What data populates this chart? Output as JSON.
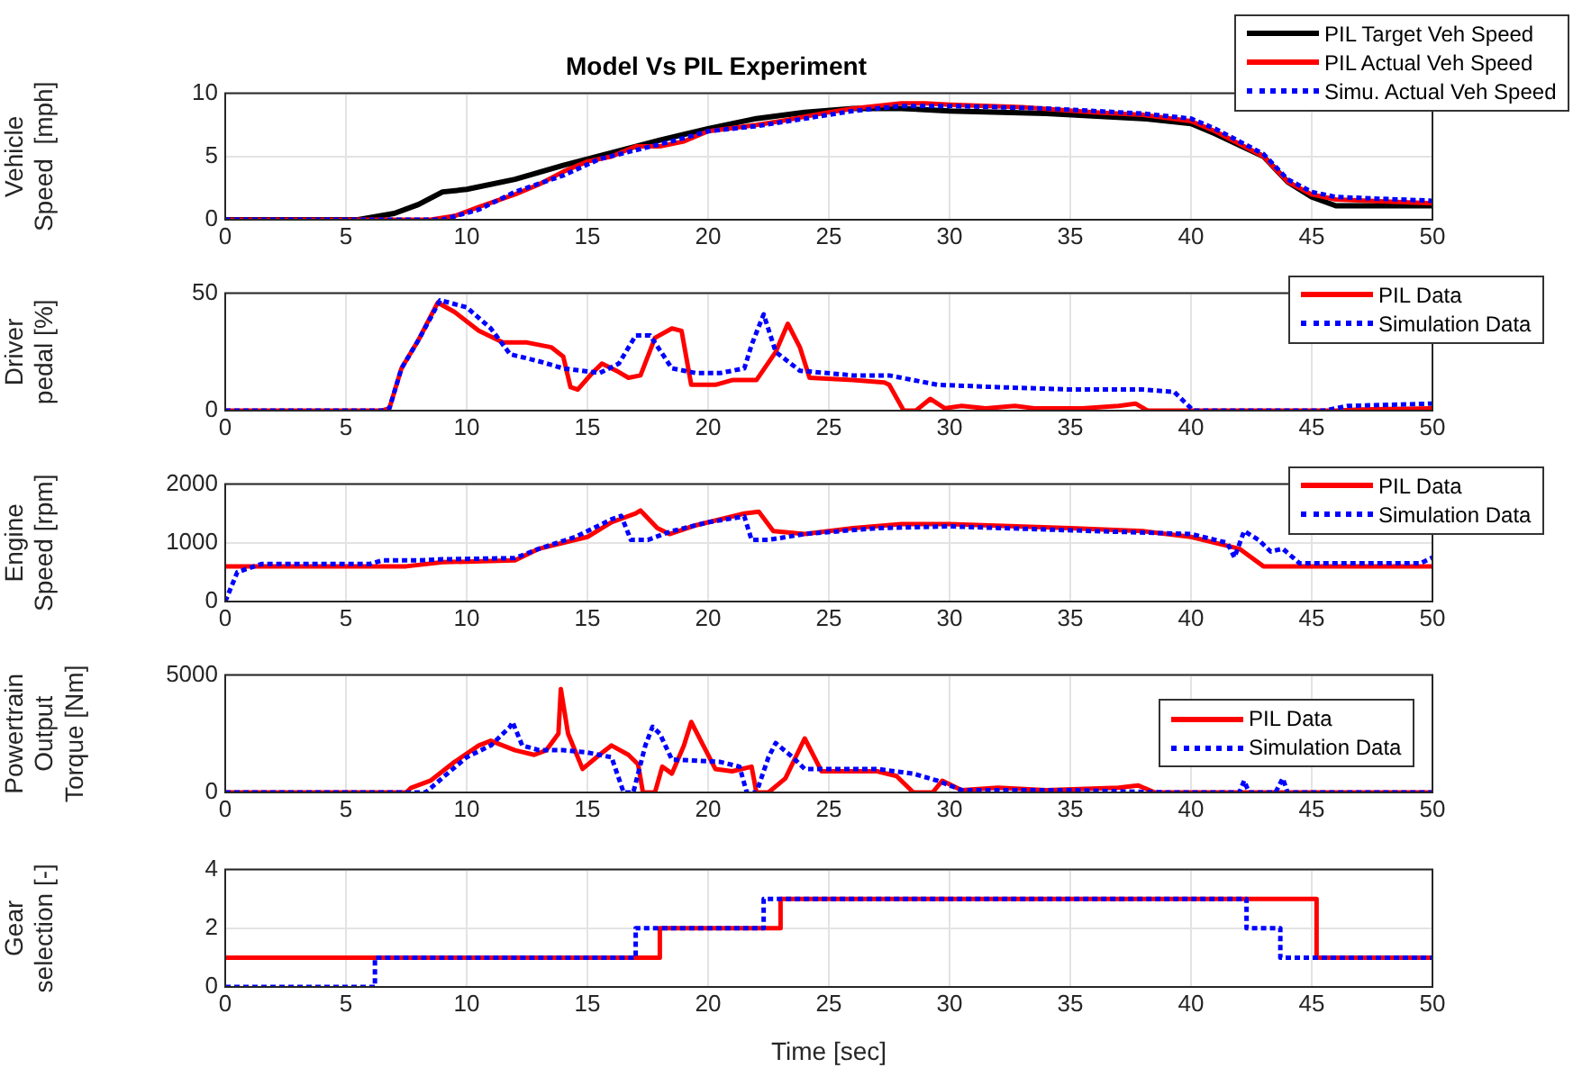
{
  "chart_data": [
    {
      "type": "line",
      "title": "Model Vs PIL Experiment",
      "ylabel": "Vehicle\nSpeed  [mph]",
      "xlim": [
        0,
        50
      ],
      "xticks": [
        0,
        5,
        10,
        15,
        20,
        25,
        30,
        35,
        40,
        45,
        50
      ],
      "ylim": [
        0,
        10
      ],
      "yticks": [
        0,
        5,
        10
      ],
      "grid": true,
      "legend": "top",
      "series": [
        {
          "name": "PIL Target Veh Speed",
          "color": "#000000",
          "line_style": "solid",
          "x": [
            0,
            5.5,
            7,
            8,
            9,
            10,
            12,
            14,
            16,
            18,
            20,
            22,
            24,
            26,
            28,
            30,
            34,
            38,
            40,
            41,
            43,
            44,
            45,
            46,
            50
          ],
          "values": [
            0,
            0,
            0.5,
            1.2,
            2.2,
            2.4,
            3.2,
            4.3,
            5.3,
            6.3,
            7.2,
            8,
            8.5,
            8.8,
            8.8,
            8.6,
            8.4,
            8,
            7.6,
            6.8,
            5,
            3,
            1.8,
            1.1,
            1.1
          ]
        },
        {
          "name": "PIL Actual Veh Speed",
          "color": "#ff0000",
          "line_style": "solid",
          "x": [
            0,
            8.5,
            9.5,
            10.5,
            12,
            13,
            14,
            15,
            16,
            17,
            18,
            19,
            20,
            22,
            23,
            25,
            26,
            28,
            29,
            30,
            33,
            36,
            38,
            40,
            41,
            43,
            44,
            45,
            46,
            50
          ],
          "values": [
            0,
            0,
            0.3,
            1,
            2,
            2.8,
            3.8,
            4.6,
            5,
            5.8,
            5.8,
            6.2,
            7,
            7.5,
            7.8,
            8.5,
            8.8,
            9.2,
            9.2,
            9.1,
            8.9,
            8.5,
            8.3,
            7.8,
            7,
            5,
            3,
            2,
            1.6,
            1.3
          ]
        },
        {
          "name": "Simu. Actual Veh Speed",
          "color": "#0000ff",
          "line_style": "dotted",
          "x": [
            0,
            9,
            10.5,
            12,
            14,
            15.5,
            17,
            18.5,
            20,
            22,
            24,
            26,
            28,
            30,
            34,
            38,
            40,
            41,
            43,
            44,
            45,
            46,
            50
          ],
          "values": [
            0,
            0,
            0.8,
            2.2,
            3.5,
            4.8,
            5.5,
            6.2,
            7,
            7.4,
            8,
            8.6,
            9,
            9,
            8.8,
            8.4,
            8,
            7.2,
            5.2,
            3.2,
            2.2,
            1.8,
            1.5
          ]
        }
      ]
    },
    {
      "type": "line",
      "ylabel": "Driver\npedal [%]",
      "xlim": [
        0,
        50
      ],
      "xticks": [
        0,
        5,
        10,
        15,
        20,
        25,
        30,
        35,
        40,
        45,
        50
      ],
      "ylim": [
        0,
        50
      ],
      "yticks": [
        0,
        50
      ],
      "grid": true,
      "legend": "top right",
      "series": [
        {
          "name": "PIL Data",
          "color": "#ff0000",
          "line_style": "solid",
          "x": [
            0,
            6.5,
            6.8,
            7.3,
            8,
            8.8,
            9.5,
            10.5,
            11.5,
            12.5,
            13.5,
            14,
            14.3,
            14.6,
            15.2,
            15.6,
            16.2,
            16.7,
            17.2,
            17.8,
            18.5,
            18.9,
            19.3,
            20.3,
            21,
            22,
            22.8,
            23.3,
            23.8,
            24.2,
            26,
            27.3,
            27.5,
            28.1,
            28.6,
            29.2,
            29.8,
            30.5,
            31.5,
            32.7,
            33.5,
            35.5,
            37,
            37.7,
            38.2,
            46,
            47,
            50
          ],
          "values": [
            0,
            0,
            1,
            18,
            30,
            46,
            42,
            34,
            29,
            29,
            27,
            23,
            10,
            9,
            16,
            20,
            17,
            14,
            15,
            31,
            35,
            34,
            11,
            11,
            13,
            13,
            25,
            37,
            27,
            14,
            13,
            12,
            11,
            0,
            0,
            5,
            1,
            2,
            1,
            2,
            1,
            1,
            2,
            3,
            0,
            0,
            0.5,
            1
          ]
        },
        {
          "name": "Simulation Data",
          "color": "#0000ff",
          "line_style": "dotted",
          "x": [
            0,
            6.5,
            6.8,
            7.3,
            8,
            8.9,
            10,
            11,
            11.8,
            13,
            14,
            15.5,
            16.3,
            17,
            17.6,
            18.5,
            19.5,
            20.5,
            21.5,
            21.8,
            22.3,
            22.8,
            23.8,
            26,
            27.5,
            28.5,
            29.5,
            32,
            35,
            38,
            39.3,
            39.8,
            40.1,
            45.5,
            46.5,
            50
          ],
          "values": [
            0,
            0,
            1,
            18,
            30,
            47,
            44,
            35,
            24,
            21,
            18,
            16,
            20,
            32,
            32,
            18,
            16,
            16,
            18,
            28,
            41,
            25,
            17,
            15,
            15,
            13,
            11,
            10,
            9,
            9,
            8,
            3,
            0,
            0,
            2,
            3
          ]
        }
      ]
    },
    {
      "type": "line",
      "ylabel": "Engine\nSpeed [rpm]",
      "xlim": [
        0,
        50
      ],
      "xticks": [
        0,
        5,
        10,
        15,
        20,
        25,
        30,
        35,
        40,
        45,
        50
      ],
      "ylim": [
        0,
        2000
      ],
      "yticks": [
        0,
        1000,
        2000
      ],
      "grid": true,
      "legend": "top right",
      "series": [
        {
          "name": "PIL Data",
          "color": "#ff0000",
          "line_style": "solid",
          "x": [
            0,
            7.5,
            9,
            12,
            13,
            14,
            15,
            16,
            17,
            17.2,
            17.9,
            18.4,
            19.5,
            20.5,
            21.5,
            22.1,
            22.7,
            24,
            26,
            28,
            30,
            35,
            38,
            40,
            42,
            43,
            50
          ],
          "values": [
            600,
            600,
            670,
            700,
            900,
            1000,
            1100,
            1350,
            1500,
            1550,
            1250,
            1150,
            1300,
            1400,
            1500,
            1530,
            1200,
            1150,
            1250,
            1320,
            1320,
            1250,
            1200,
            1100,
            900,
            600,
            600
          ]
        },
        {
          "name": "Simulation Data",
          "color": "#0000ff",
          "line_style": "dotted",
          "x": [
            0,
            0.5,
            1.5,
            6,
            6.5,
            8,
            9,
            12,
            13,
            14.5,
            16,
            16.4,
            16.8,
            17.5,
            18.5,
            20,
            21.5,
            21.8,
            22.5,
            24,
            27,
            30,
            36,
            40,
            41.5,
            41.8,
            42.2,
            42.8,
            43.3,
            43.8,
            44.5,
            49.5,
            50
          ],
          "values": [
            0,
            500,
            640,
            640,
            700,
            700,
            720,
            740,
            900,
            1100,
            1400,
            1460,
            1050,
            1050,
            1200,
            1350,
            1450,
            1050,
            1050,
            1150,
            1250,
            1280,
            1200,
            1150,
            1000,
            750,
            1200,
            1050,
            850,
            900,
            650,
            650,
            750
          ]
        }
      ]
    },
    {
      "type": "line",
      "ylabel": "Powertrain\nOutput\nTorque [Nm]",
      "xlim": [
        0,
        50
      ],
      "xticks": [
        0,
        5,
        10,
        15,
        20,
        25,
        30,
        35,
        40,
        45,
        50
      ],
      "ylim": [
        0,
        5000
      ],
      "yticks": [
        0,
        5000
      ],
      "grid": true,
      "legend": "right",
      "series": [
        {
          "name": "PIL Data",
          "color": "#ff0000",
          "line_style": "solid",
          "x": [
            0,
            7.5,
            7.7,
            8.5,
            9.5,
            10.5,
            11,
            12,
            12.8,
            13.3,
            13.8,
            13.9,
            14.2,
            14.8,
            15.5,
            16,
            16.7,
            17.1,
            17.3,
            17.8,
            18.1,
            18.5,
            19,
            19.3,
            19.8,
            20.3,
            21,
            21.8,
            22,
            22.5,
            23.2,
            24,
            24.7,
            27,
            27.8,
            28.5,
            29.3,
            29.7,
            30.5,
            32,
            34,
            37,
            37.8,
            38.5,
            50
          ],
          "values": [
            0,
            0,
            200,
            500,
            1300,
            2000,
            2200,
            1800,
            1600,
            1800,
            2500,
            4400,
            2500,
            1000,
            1600,
            2000,
            1600,
            1200,
            0,
            0,
            1100,
            800,
            2000,
            3000,
            2000,
            1000,
            900,
            1100,
            0,
            0,
            600,
            2300,
            900,
            900,
            700,
            0,
            0,
            500,
            100,
            200,
            100,
            200,
            300,
            0,
            0
          ]
        },
        {
          "name": "Simulation Data",
          "color": "#0000ff",
          "line_style": "dotted",
          "x": [
            0,
            8.3,
            9.2,
            10,
            11,
            11.8,
            11.9,
            12.3,
            13,
            14,
            15,
            16,
            16.5,
            16.9,
            17.4,
            17.7,
            18,
            18.5,
            20.5,
            21.3,
            21.6,
            22,
            22.5,
            22.8,
            23.5,
            24,
            27,
            28.5,
            29.5,
            30.5,
            35,
            39,
            42,
            42.2,
            42.4,
            43.5,
            43.8,
            44,
            50
          ],
          "values": [
            0,
            0,
            800,
            1500,
            2000,
            2800,
            3000,
            2000,
            1800,
            1800,
            1700,
            1500,
            0,
            0,
            2000,
            2800,
            2500,
            1400,
            1300,
            1100,
            0,
            0,
            1500,
            2100,
            1500,
            1000,
            1000,
            800,
            500,
            100,
            100,
            0,
            0,
            500,
            0,
            0,
            600,
            0,
            0
          ]
        }
      ]
    },
    {
      "type": "step",
      "ylabel": "Gear\nselection [-]",
      "xlabel": "Time [sec]",
      "xlim": [
        0,
        50
      ],
      "xticks": [
        0,
        5,
        10,
        15,
        20,
        25,
        30,
        35,
        40,
        45,
        50
      ],
      "ylim": [
        0,
        4
      ],
      "yticks": [
        0,
        2,
        4
      ],
      "grid": true,
      "series": [
        {
          "color": "#ff0000",
          "line_style": "solid",
          "x": [
            0,
            18,
            23,
            45.2,
            50
          ],
          "values": [
            1,
            2,
            3,
            1,
            1
          ]
        },
        {
          "color": "#0000ff",
          "line_style": "dotted",
          "x": [
            0,
            6.2,
            17,
            22.3,
            42.3,
            43.7,
            50
          ],
          "values": [
            0,
            1,
            2,
            3,
            2,
            1,
            1
          ]
        }
      ]
    }
  ]
}
